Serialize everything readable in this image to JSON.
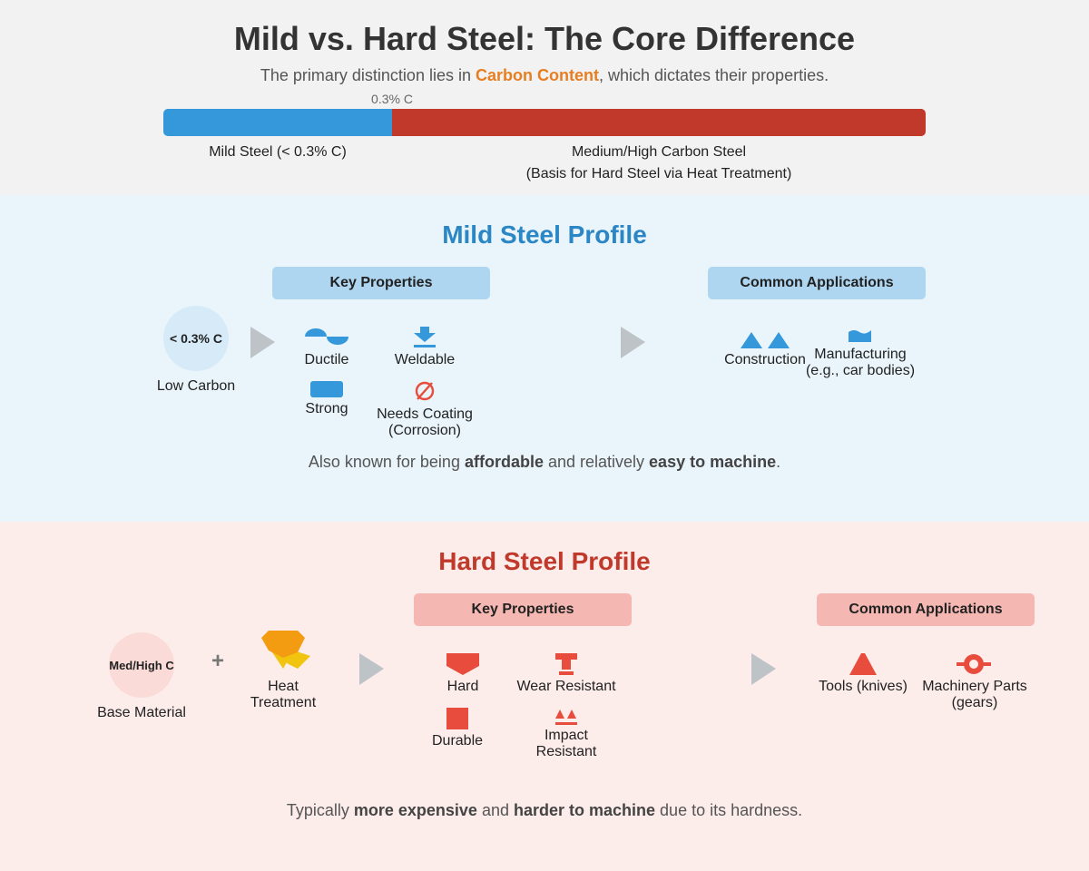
{
  "header": {
    "title": "Mild vs. Hard Steel: The Core Difference",
    "subtitle_pre": "The primary distinction lies in ",
    "subtitle_highlight": "Carbon Content",
    "subtitle_post": ", which dictates their properties.",
    "threshold_label": "0.3% C",
    "mild_bar_label": "Mild Steel (< 0.3% C)",
    "hard_bar_label_1": "Medium/High Carbon Steel",
    "hard_bar_label_2": "(Basis for Hard Steel via Heat Treatment)"
  },
  "mild": {
    "title": "Mild Steel Profile",
    "key_properties": "Key Properties",
    "common_applications": "Common Applications",
    "circle_text": "< 0.3% C",
    "circle_label": "Low Carbon",
    "properties": {
      "ductile": "Ductile",
      "weldable": "Weldable",
      "strong": "Strong",
      "coating_1": "Needs Coating",
      "coating_2": "(Corrosion)"
    },
    "applications": {
      "construction": "Construction",
      "manufacturing_1": "Manufacturing",
      "manufacturing_2": "(e.g., car bodies)"
    },
    "note": {
      "p1": "Also known for being ",
      "b1": "affordable",
      "p2": " and relatively ",
      "b2": "easy to machine",
      "p3": "."
    }
  },
  "hard": {
    "title": "Hard Steel Profile",
    "key_properties": "Key Properties",
    "common_applications": "Common Applications",
    "circle_text": "Med/High C",
    "circle_label": "Base Material",
    "plus": "+",
    "heat_1": "Heat",
    "heat_2": "Treatment",
    "properties": {
      "hard": "Hard",
      "wear": "Wear Resistant",
      "durable": "Durable",
      "impact_1": "Impact",
      "impact_2": "Resistant"
    },
    "applications": {
      "tools": "Tools (knives)",
      "machinery_1": "Machinery Parts",
      "machinery_2": "(gears)"
    },
    "note": {
      "p1": "Typically ",
      "b1": "more expensive",
      "p2": " and ",
      "b2": "harder to machine",
      "p3": " due to its hardness."
    }
  },
  "colors": {
    "mild_blue": "#3498db",
    "hard_red": "#c0392b",
    "accent_orange": "#e67e22",
    "icon_red": "#e74c3c",
    "heat_orange": "#f39c12",
    "heat_yellow": "#f1c40f",
    "arrow_gray": "#bdc3c7"
  }
}
